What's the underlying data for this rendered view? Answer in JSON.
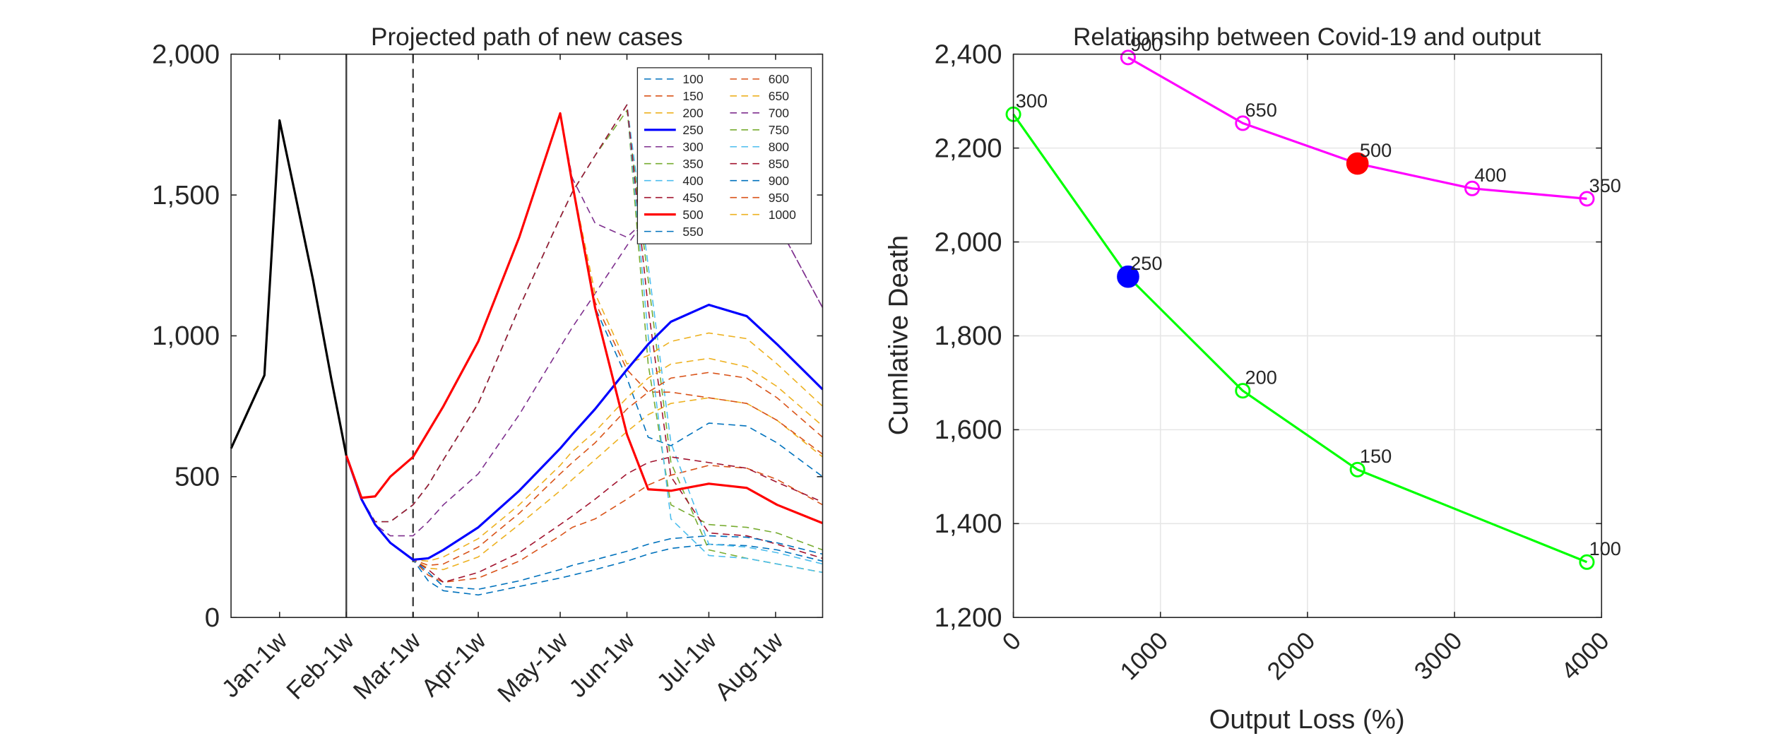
{
  "chart_data": [
    {
      "type": "line",
      "title": "Projected path of new cases",
      "x": [
        0,
        2.2,
        3.2,
        4.2,
        5.4,
        6.6,
        7.6,
        8.6,
        9.5,
        10.5,
        12,
        13,
        14,
        16.3,
        19,
        21.7,
        22.5,
        24,
        26.1,
        27.5,
        29,
        31.5,
        34,
        36,
        39
      ],
      "xlim": [
        0,
        39
      ],
      "xticks": [
        {
          "value": 3.2,
          "label": "Jan-1w"
        },
        {
          "value": 7.6,
          "label": "Feb-1w"
        },
        {
          "value": 12,
          "label": "Mar-1w"
        },
        {
          "value": 16.3,
          "label": "Apr-1w"
        },
        {
          "value": 21.7,
          "label": "May-1w"
        },
        {
          "value": 26.1,
          "label": "Jun-1w"
        },
        {
          "value": 31.5,
          "label": "Jul-1w"
        },
        {
          "value": 35.9,
          "label": "Aug-1w"
        }
      ],
      "ylim": [
        0,
        2000
      ],
      "yticks": [
        0,
        500,
        {
          "value": 1000,
          "label": "1,000"
        },
        {
          "value": 1500,
          "label": "1,500"
        },
        {
          "value": 2000,
          "label": "2,000"
        }
      ],
      "grid": false,
      "legend": "northeast",
      "vlines": [
        {
          "x": 7.6,
          "color": "#404040",
          "dash": false
        },
        {
          "x": 12,
          "color": "#404040",
          "dash": true
        }
      ],
      "series": [
        {
          "color": "#000000",
          "dash": false,
          "width": 2,
          "values": [
            600,
            860,
            1765,
            1510,
            1200,
            850,
            575,
            null,
            null,
            null,
            null,
            null,
            null,
            null,
            null,
            null,
            null,
            null,
            null,
            null,
            null,
            null,
            null,
            null,
            null
          ]
        },
        {
          "name": "100",
          "color": "#0072BD",
          "dash": true,
          "width": 1,
          "values": [
            null,
            null,
            null,
            null,
            null,
            null,
            575,
            420,
            330,
            265,
            205,
            130,
            95,
            80,
            110,
            140,
            150,
            170,
            200,
            225,
            245,
            260,
            255,
            240,
            200
          ]
        },
        {
          "name": "150",
          "color": "#D95319",
          "dash": true,
          "width": 1,
          "values": [
            null,
            null,
            null,
            null,
            null,
            null,
            575,
            420,
            330,
            265,
            205,
            150,
            125,
            140,
            200,
            290,
            320,
            350,
            420,
            470,
            505,
            540,
            530,
            490,
            400
          ]
        },
        {
          "name": "200",
          "color": "#EDB120",
          "dash": true,
          "width": 1,
          "values": [
            null,
            null,
            null,
            null,
            null,
            null,
            575,
            420,
            330,
            265,
            205,
            175,
            170,
            215,
            330,
            450,
            490,
            560,
            660,
            720,
            760,
            780,
            760,
            700,
            570
          ]
        },
        {
          "name": "250",
          "color": "#0000FF",
          "dash": false,
          "width": 2,
          "values": [
            null,
            null,
            null,
            null,
            null,
            null,
            575,
            420,
            330,
            265,
            205,
            210,
            240,
            320,
            450,
            600,
            650,
            740,
            880,
            970,
            1050,
            1110,
            1070,
            970,
            810
          ]
        },
        {
          "name": "300",
          "color": "#7E2F8E",
          "dash": true,
          "width": 1,
          "values": [
            null,
            null,
            null,
            null,
            null,
            null,
            575,
            420,
            330,
            290,
            290,
            340,
            400,
            510,
            720,
            960,
            1030,
            1150,
            1320,
            1430,
            1520,
            1570,
            1530,
            1400,
            1100
          ]
        },
        {
          "name": "350",
          "color": "#77AC30",
          "dash": true,
          "width": 1,
          "values": [
            null,
            null,
            null,
            null,
            null,
            null,
            575,
            420,
            340,
            340,
            400,
            470,
            560,
            760,
            1100,
            1420,
            1510,
            1640,
            1800,
            1200,
            550,
            240,
            210,
            190,
            160
          ]
        },
        {
          "name": "400",
          "color": "#4DBEEE",
          "dash": true,
          "width": 1,
          "values": [
            null,
            null,
            null,
            null,
            null,
            null,
            575,
            420,
            340,
            340,
            400,
            470,
            560,
            760,
            1100,
            1420,
            1510,
            1640,
            1820,
            1250,
            620,
            260,
            250,
            230,
            190
          ]
        },
        {
          "name": "450",
          "color": "#A2142F",
          "dash": true,
          "width": 1,
          "values": [
            null,
            null,
            null,
            null,
            null,
            null,
            575,
            420,
            330,
            265,
            205,
            170,
            125,
            160,
            230,
            330,
            360,
            420,
            510,
            550,
            570,
            550,
            530,
            480,
            410
          ]
        },
        {
          "name": "500",
          "color": "#FF0000",
          "dash": false,
          "width": 2,
          "values": [
            null,
            null,
            null,
            null,
            null,
            null,
            575,
            425,
            430,
            500,
            570,
            660,
            750,
            980,
            1350,
            1790,
            1540,
            1100,
            650,
            455,
            450,
            475,
            460,
            400,
            335
          ]
        },
        {
          "name": "550",
          "color": "#0072BD",
          "dash": true,
          "width": 1,
          "values": [
            null,
            null,
            null,
            null,
            null,
            null,
            575,
            425,
            430,
            500,
            570,
            660,
            750,
            980,
            1350,
            1790,
            1540,
            1100,
            850,
            640,
            610,
            690,
            680,
            620,
            500
          ]
        },
        {
          "name": "600",
          "color": "#D95319",
          "dash": true,
          "width": 1,
          "values": [
            null,
            null,
            null,
            null,
            null,
            null,
            575,
            425,
            430,
            500,
            570,
            660,
            750,
            980,
            1350,
            1790,
            1540,
            1120,
            880,
            800,
            800,
            780,
            760,
            700,
            580
          ]
        },
        {
          "name": "650",
          "color": "#EDB120",
          "dash": true,
          "width": 1,
          "values": [
            null,
            null,
            null,
            null,
            null,
            null,
            575,
            425,
            430,
            500,
            570,
            660,
            750,
            980,
            1350,
            1790,
            1540,
            1150,
            900,
            930,
            980,
            1010,
            990,
            900,
            750
          ]
        },
        {
          "name": "700",
          "color": "#7E2F8E",
          "dash": true,
          "width": 1,
          "values": [
            null,
            null,
            null,
            null,
            null,
            null,
            575,
            425,
            430,
            500,
            570,
            660,
            750,
            980,
            1350,
            1790,
            1560,
            1400,
            1350,
            1420,
            1500,
            1560,
            1520,
            1400,
            1100
          ]
        },
        {
          "name": "750",
          "color": "#77AC30",
          "dash": true,
          "width": 1,
          "values": [
            null,
            null,
            null,
            null,
            null,
            null,
            575,
            420,
            340,
            340,
            400,
            470,
            560,
            760,
            1100,
            1420,
            1510,
            1640,
            1820,
            900,
            400,
            330,
            320,
            300,
            240
          ]
        },
        {
          "name": "800",
          "color": "#4DBEEE",
          "dash": true,
          "width": 1,
          "values": [
            null,
            null,
            null,
            null,
            null,
            null,
            575,
            420,
            340,
            340,
            400,
            470,
            560,
            760,
            1100,
            1420,
            1510,
            1640,
            1820,
            1000,
            350,
            220,
            210,
            190,
            160
          ]
        },
        {
          "name": "850",
          "color": "#A2142F",
          "dash": true,
          "width": 1,
          "values": [
            null,
            null,
            null,
            null,
            null,
            null,
            575,
            420,
            340,
            340,
            400,
            470,
            560,
            760,
            1100,
            1420,
            1510,
            1640,
            1820,
            1100,
            500,
            300,
            290,
            260,
            210
          ]
        },
        {
          "name": "900",
          "color": "#0072BD",
          "dash": true,
          "width": 1,
          "values": [
            null,
            null,
            null,
            null,
            null,
            null,
            575,
            420,
            330,
            265,
            205,
            160,
            110,
            100,
            130,
            170,
            185,
            205,
            235,
            260,
            280,
            290,
            285,
            265,
            225
          ]
        },
        {
          "name": "950",
          "color": "#D95319",
          "dash": true,
          "width": 1,
          "values": [
            null,
            null,
            null,
            null,
            null,
            null,
            575,
            420,
            330,
            265,
            205,
            185,
            190,
            250,
            370,
            510,
            550,
            620,
            740,
            800,
            850,
            870,
            850,
            780,
            640
          ]
        },
        {
          "name": "1000",
          "color": "#EDB120",
          "dash": true,
          "width": 1,
          "values": [
            null,
            null,
            null,
            null,
            null,
            null,
            575,
            420,
            330,
            265,
            205,
            200,
            215,
            280,
            400,
            540,
            590,
            660,
            780,
            850,
            900,
            920,
            890,
            820,
            680
          ]
        }
      ]
    },
    {
      "type": "line",
      "title": "Relationsihp between Covid-19 and output",
      "x_label": "Output Loss (%)",
      "y_label": "Cumlative Death",
      "xlim": [
        0,
        4000
      ],
      "xticks": [
        0,
        1000,
        2000,
        3000,
        4000
      ],
      "ylim": [
        1200,
        2400
      ],
      "yticks": [
        {
          "value": 1200,
          "label": "1,200"
        },
        {
          "value": 1400,
          "label": "1,400"
        },
        {
          "value": 1600,
          "label": "1,600"
        },
        {
          "value": 1800,
          "label": "1,800"
        },
        {
          "value": 2000,
          "label": "2,000"
        },
        {
          "value": 2200,
          "label": "2,200"
        },
        {
          "value": 2400,
          "label": "2,400"
        }
      ],
      "grid": true,
      "marker": "circle",
      "series": [
        {
          "color": "#00FF00",
          "dash": false,
          "width": 2,
          "x": [
            0,
            780,
            1560,
            2340,
            3900
          ],
          "values": [
            2272,
            1926,
            1683,
            1515,
            1318
          ],
          "labels": [
            "300",
            "250",
            "200",
            "150",
            "100"
          ],
          "highlight_index": 1,
          "highlight_color": "#0000FF"
        },
        {
          "color": "#FF00FF",
          "dash": false,
          "width": 2,
          "x": [
            780,
            1560,
            2340,
            3120,
            3900
          ],
          "values": [
            2393,
            2253,
            2167,
            2114,
            2092
          ],
          "labels": [
            "900",
            "650",
            "500",
            "400",
            "350"
          ],
          "highlight_index": 2,
          "highlight_color": "#FF0000"
        }
      ]
    }
  ]
}
